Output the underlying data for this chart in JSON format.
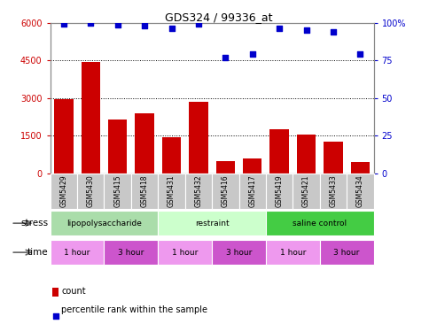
{
  "title": "GDS324 / 99336_at",
  "samples": [
    "GSM5429",
    "GSM5430",
    "GSM5415",
    "GSM5418",
    "GSM5431",
    "GSM5432",
    "GSM5416",
    "GSM5417",
    "GSM5419",
    "GSM5421",
    "GSM5433",
    "GSM5434"
  ],
  "counts": [
    2950,
    4450,
    2150,
    2400,
    1450,
    2850,
    500,
    600,
    1750,
    1550,
    1250,
    450
  ],
  "percentiles": [
    99,
    99.5,
    98.5,
    98,
    96,
    99,
    77,
    79,
    96,
    95,
    94,
    79
  ],
  "ylim_left": [
    0,
    6000
  ],
  "ylim_right": [
    0,
    100
  ],
  "yticks_left": [
    0,
    1500,
    3000,
    4500,
    6000
  ],
  "yticks_right": [
    0,
    25,
    50,
    75,
    100
  ],
  "bar_color": "#cc0000",
  "dot_color": "#0000cc",
  "stress_groups": [
    {
      "label": "lipopolysaccharide",
      "start": 0,
      "end": 4,
      "color": "#aaddaa"
    },
    {
      "label": "restraint",
      "start": 4,
      "end": 8,
      "color": "#ccffcc"
    },
    {
      "label": "saline control",
      "start": 8,
      "end": 12,
      "color": "#44cc44"
    }
  ],
  "time_groups": [
    {
      "label": "1 hour",
      "start": 0,
      "end": 2,
      "color": "#ee99ee"
    },
    {
      "label": "3 hour",
      "start": 2,
      "end": 4,
      "color": "#cc55cc"
    },
    {
      "label": "1 hour",
      "start": 4,
      "end": 6,
      "color": "#ee99ee"
    },
    {
      "label": "3 hour",
      "start": 6,
      "end": 8,
      "color": "#cc55cc"
    },
    {
      "label": "1 hour",
      "start": 8,
      "end": 10,
      "color": "#ee99ee"
    },
    {
      "label": "3 hour",
      "start": 10,
      "end": 12,
      "color": "#cc55cc"
    }
  ],
  "stress_label": "stress",
  "time_label": "time",
  "legend_count_label": "count",
  "legend_percentile_label": "percentile rank within the sample",
  "grid_color": "#000000",
  "tick_color_left": "#cc0000",
  "tick_color_right": "#0000cc",
  "background_color": "#ffffff",
  "sample_box_color": "#c8c8c8"
}
